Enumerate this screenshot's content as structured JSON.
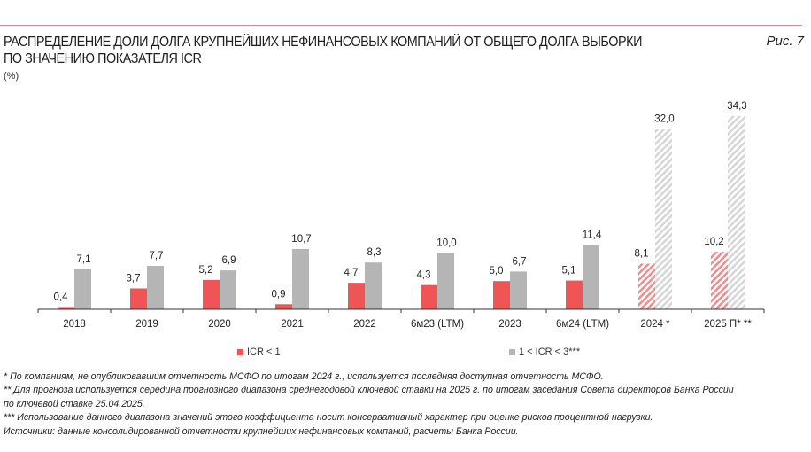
{
  "header": {
    "title_line1": "РАСПРЕДЕЛЕНИЕ ДОЛИ ДОЛГА КРУПНЕЙШИХ НЕФИНАНСОВЫХ КОМПАНИЙ ОТ ОБЩЕГО ДОЛГА ВЫБОРКИ",
    "title_line2": "ПО ЗНАЧЕНИЮ ПОКАЗАТЕЛЯ ICR",
    "figure_label": "Рис. 7",
    "unit": "(%)"
  },
  "colors": {
    "accent_line": "#d98a97",
    "red": "#f05555",
    "gray": "#b5b5b5",
    "red_hatch": "#f28b8b",
    "gray_hatch": "#d6d6d6"
  },
  "chart_data": {
    "type": "bar",
    "title": "РАСПРЕДЕЛЕНИЕ ДОЛИ ДОЛГА КРУПНЕЙШИХ НЕФИНАНСОВЫХ КОМПАНИЙ ОТ ОБЩЕГО ДОЛГА ВЫБОРКИ ПО ЗНАЧЕНИЮ ПОКАЗАТЕЛЯ ICR",
    "ylabel": "(%)",
    "ylim": [
      0,
      35
    ],
    "grid": false,
    "legend_position": "bottom",
    "categories": [
      "2018",
      "2019",
      "2020",
      "2021",
      "2022",
      "6м23 (LTM)",
      "2023",
      "6м24 (LTM)",
      "2024 *",
      "2025 П* **"
    ],
    "hatched": [
      false,
      false,
      false,
      false,
      false,
      false,
      false,
      false,
      true,
      true
    ],
    "series": [
      {
        "name": "ICR < 1",
        "values": [
          0.4,
          3.7,
          5.2,
          0.9,
          4.7,
          4.3,
          5.0,
          5.1,
          8.1,
          10.2
        ],
        "labels": [
          "0,4",
          "3,7",
          "5,2",
          "0,9",
          "4,7",
          "4,3",
          "5,0",
          "5,1",
          "8,1",
          "10,2"
        ]
      },
      {
        "name": "1 < ICR < 3***",
        "values": [
          7.1,
          7.7,
          6.9,
          10.7,
          8.3,
          10.0,
          6.7,
          11.4,
          32.0,
          34.3
        ],
        "labels": [
          "7,1",
          "7,7",
          "6,9",
          "10,7",
          "8,3",
          "10,0",
          "6,7",
          "11,4",
          "32,0",
          "34,3"
        ]
      }
    ]
  },
  "notes": [
    "* По компаниям, не опубликовавшим отчетность МСФО по итогам 2024 г., используется последняя доступная отчетность МСФО.",
    "** Для прогноза используется середина прогнозного диапазона среднегодовой ключевой ставки на 2025 г. по итогам заседания Совета директоров Банка России",
    "по ключевой ставке 25.04.2025.",
    "*** Использование данного диапазона значений этого коэффициента носит консервативный характер при оценке рисков процентной нагрузки.",
    "Источники: данные консолидированной отчетности крупнейших нефинансовых компаний, расчеты Банка России."
  ]
}
